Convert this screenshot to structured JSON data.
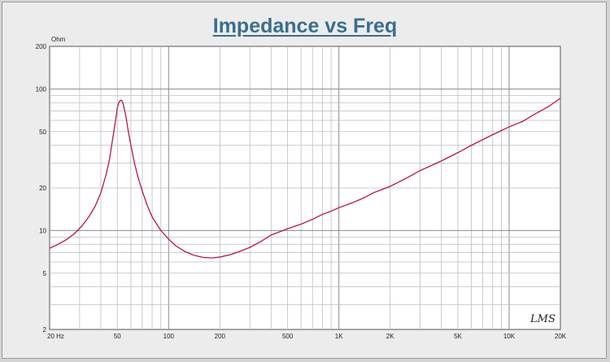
{
  "chart_data": {
    "type": "line",
    "title": "Impedance vs Freq",
    "y_unit_label": "Ohm",
    "x_scale": "log",
    "y_scale": "log",
    "xlim": [
      20,
      20000
    ],
    "ylim": [
      2,
      200
    ],
    "grid": true,
    "x_ticks": [
      {
        "value": 20,
        "label": "20  Hz"
      },
      {
        "value": 50,
        "label": "50"
      },
      {
        "value": 100,
        "label": "100"
      },
      {
        "value": 200,
        "label": "200"
      },
      {
        "value": 500,
        "label": "500"
      },
      {
        "value": 1000,
        "label": "1K"
      },
      {
        "value": 2000,
        "label": "2K"
      },
      {
        "value": 5000,
        "label": "5K"
      },
      {
        "value": 10000,
        "label": "10K"
      },
      {
        "value": 20000,
        "label": "20K"
      }
    ],
    "y_ticks": [
      {
        "value": 2,
        "label": "2"
      },
      {
        "value": 5,
        "label": "5"
      },
      {
        "value": 10,
        "label": "10"
      },
      {
        "value": 20,
        "label": "20"
      },
      {
        "value": 50,
        "label": "50"
      },
      {
        "value": 100,
        "label": "100"
      },
      {
        "value": 200,
        "label": "200"
      }
    ],
    "series": [
      {
        "color": "#b5174f",
        "points": [
          [
            20,
            7.5
          ],
          [
            22,
            7.9
          ],
          [
            25,
            8.6
          ],
          [
            28,
            9.5
          ],
          [
            31,
            10.8
          ],
          [
            34,
            12.5
          ],
          [
            37,
            14.8
          ],
          [
            40,
            18.5
          ],
          [
            43,
            25
          ],
          [
            45,
            32
          ],
          [
            47,
            45
          ],
          [
            49,
            62
          ],
          [
            50,
            74
          ],
          [
            51,
            80
          ],
          [
            52,
            83
          ],
          [
            53,
            83
          ],
          [
            54,
            79
          ],
          [
            56,
            65
          ],
          [
            58,
            50
          ],
          [
            60,
            40
          ],
          [
            63,
            30
          ],
          [
            66,
            24
          ],
          [
            70,
            19
          ],
          [
            75,
            15
          ],
          [
            80,
            12.5
          ],
          [
            90,
            10
          ],
          [
            100,
            8.7
          ],
          [
            110,
            7.8
          ],
          [
            125,
            7.1
          ],
          [
            140,
            6.7
          ],
          [
            160,
            6.45
          ],
          [
            180,
            6.4
          ],
          [
            200,
            6.5
          ],
          [
            230,
            6.75
          ],
          [
            260,
            7.1
          ],
          [
            300,
            7.6
          ],
          [
            350,
            8.4
          ],
          [
            400,
            9.3
          ],
          [
            450,
            9.8
          ],
          [
            500,
            10.3
          ],
          [
            600,
            11.1
          ],
          [
            700,
            12.0
          ],
          [
            800,
            13.0
          ],
          [
            900,
            13.7
          ],
          [
            1000,
            14.5
          ],
          [
            1200,
            15.7
          ],
          [
            1400,
            17.0
          ],
          [
            1600,
            18.5
          ],
          [
            2000,
            20.5
          ],
          [
            2500,
            23.5
          ],
          [
            3000,
            26.5
          ],
          [
            4000,
            31
          ],
          [
            5000,
            35.5
          ],
          [
            6000,
            40
          ],
          [
            8000,
            47.5
          ],
          [
            10000,
            54
          ],
          [
            12000,
            59
          ],
          [
            14000,
            66
          ],
          [
            17000,
            75
          ],
          [
            20000,
            86
          ]
        ]
      }
    ]
  },
  "signature": "LMS"
}
